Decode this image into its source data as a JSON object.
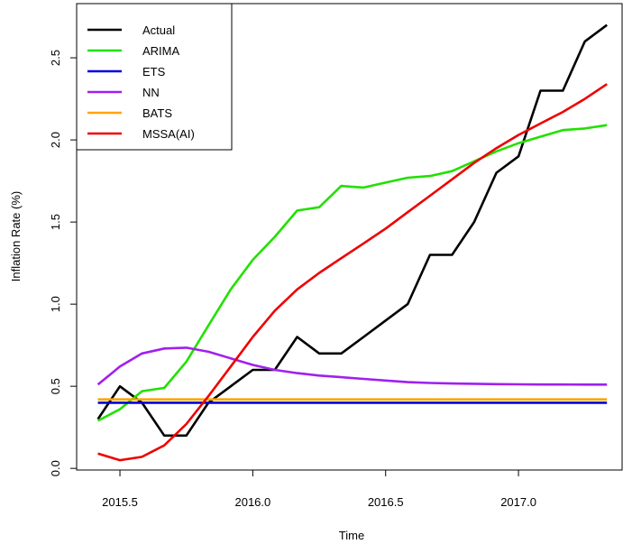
{
  "chart_data": {
    "type": "line",
    "xlabel": "Time",
    "ylabel": "Inflation Rate (%)",
    "x": [
      2015.417,
      2015.5,
      2015.583,
      2015.667,
      2015.75,
      2015.833,
      2015.917,
      2016.0,
      2016.083,
      2016.167,
      2016.25,
      2016.333,
      2016.417,
      2016.5,
      2016.583,
      2016.667,
      2016.75,
      2016.833,
      2016.917,
      2017.0,
      2017.083,
      2017.167,
      2017.25,
      2017.333
    ],
    "series": [
      {
        "name": "Actual",
        "color": "#000000",
        "values": [
          0.3,
          0.5,
          0.4,
          0.2,
          0.2,
          0.4,
          0.5,
          0.6,
          0.6,
          0.8,
          0.7,
          0.7,
          0.8,
          0.9,
          1.0,
          1.3,
          1.3,
          1.5,
          1.8,
          1.9,
          2.3,
          2.3,
          2.6,
          2.7
        ]
      },
      {
        "name": "ARIMA",
        "color": "#22e000",
        "values": [
          0.29,
          0.36,
          0.47,
          0.49,
          0.65,
          0.87,
          1.09,
          1.27,
          1.41,
          1.57,
          1.59,
          1.72,
          1.71,
          1.74,
          1.77,
          1.78,
          1.81,
          1.87,
          1.93,
          1.98,
          2.02,
          2.06,
          2.07,
          2.09
        ]
      },
      {
        "name": "ETS",
        "color": "#0000dd",
        "values": [
          0.4,
          0.4,
          0.4,
          0.4,
          0.4,
          0.4,
          0.4,
          0.4,
          0.4,
          0.4,
          0.4,
          0.4,
          0.4,
          0.4,
          0.4,
          0.4,
          0.4,
          0.4,
          0.4,
          0.4,
          0.4,
          0.4,
          0.4,
          0.4
        ]
      },
      {
        "name": "NN",
        "color": "#a020f0",
        "values": [
          0.51,
          0.62,
          0.7,
          0.73,
          0.735,
          0.71,
          0.67,
          0.63,
          0.6,
          0.58,
          0.565,
          0.555,
          0.545,
          0.535,
          0.525,
          0.52,
          0.517,
          0.515,
          0.513,
          0.512,
          0.511,
          0.511,
          0.51,
          0.51
        ]
      },
      {
        "name": "BATS",
        "color": "#ffa500",
        "values": [
          0.42,
          0.42,
          0.42,
          0.42,
          0.42,
          0.42,
          0.42,
          0.42,
          0.42,
          0.42,
          0.42,
          0.42,
          0.42,
          0.42,
          0.42,
          0.42,
          0.42,
          0.42,
          0.42,
          0.42,
          0.42,
          0.42,
          0.42,
          0.42
        ]
      },
      {
        "name": "MSSA(AI)",
        "color": "#ee0000",
        "values": [
          0.09,
          0.05,
          0.07,
          0.14,
          0.27,
          0.44,
          0.62,
          0.8,
          0.96,
          1.09,
          1.19,
          1.28,
          1.37,
          1.46,
          1.56,
          1.66,
          1.76,
          1.86,
          1.95,
          2.03,
          2.1,
          2.17,
          2.25,
          2.34
        ]
      }
    ],
    "xlim": [
      2015.337,
      2017.39
    ],
    "ylim": [
      -0.01,
      2.83
    ],
    "xticks": [
      {
        "value": 2015.5,
        "label": "2015.5"
      },
      {
        "value": 2016.0,
        "label": "2016.0"
      },
      {
        "value": 2016.5,
        "label": "2016.5"
      },
      {
        "value": 2017.0,
        "label": "2017.0"
      }
    ],
    "yticks": [
      {
        "value": 0,
        "label": "0.0"
      },
      {
        "value": 0.5,
        "label": "0.5"
      },
      {
        "value": 1.0,
        "label": "1.0"
      },
      {
        "value": 1.5,
        "label": "1.5"
      },
      {
        "value": 2.0,
        "label": "2.0"
      },
      {
        "value": 2.5,
        "label": "2.5"
      }
    ],
    "legend": "top-left"
  }
}
